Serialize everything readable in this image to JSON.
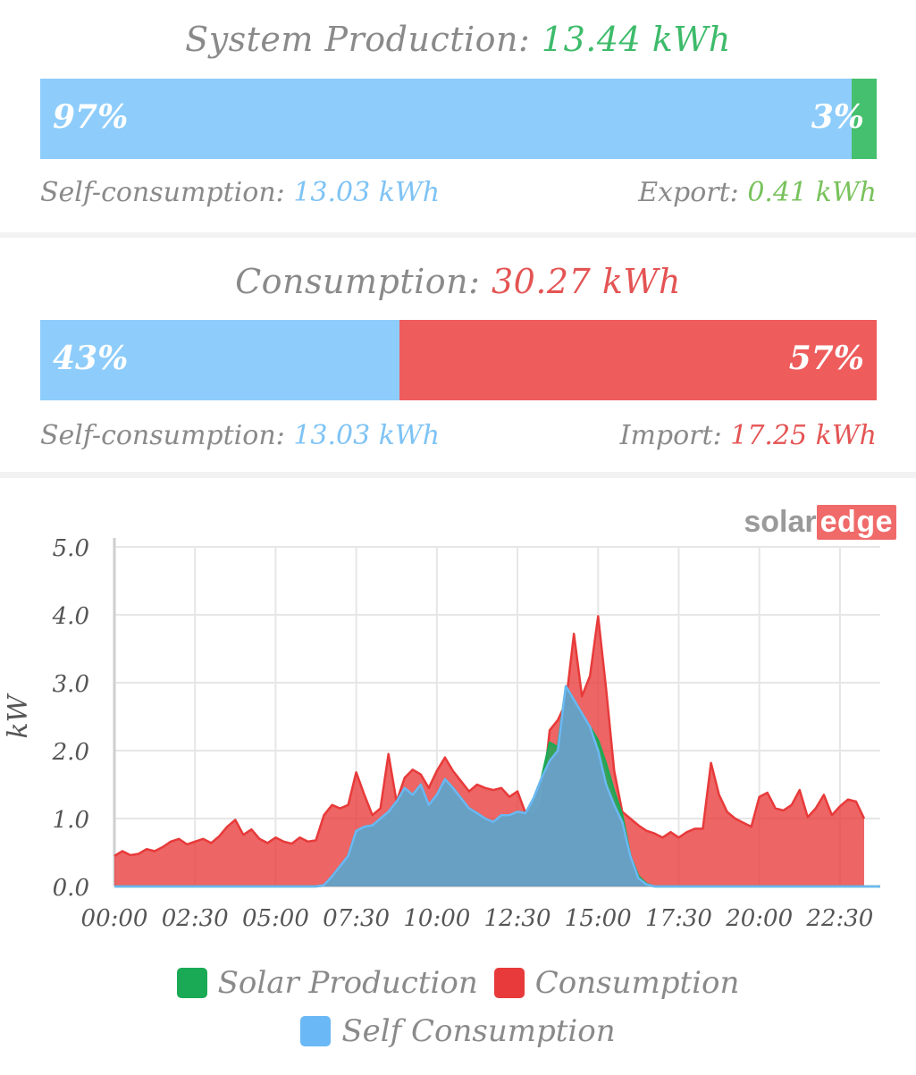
{
  "production": {
    "title": "System Production:",
    "total": "13.44 kWh",
    "self_pct": "97%",
    "export_pct": "3%",
    "self_fraction": 0.97,
    "self_label": "Self-consumption:",
    "self_value": "13.03 kWh",
    "export_label": "Export:",
    "export_value": "0.41 kWh"
  },
  "consumption": {
    "title": "Consumption:",
    "total": "30.27 kWh",
    "self_pct": "43%",
    "import_pct": "57%",
    "self_fraction": 0.43,
    "self_label": "Self-consumption:",
    "self_value": "13.03 kWh",
    "import_label": "Import:",
    "import_value": "17.25 kWh"
  },
  "brand": {
    "solar": "solar",
    "edge": "edge"
  },
  "colors": {
    "solar_production": "#1aaa55",
    "consumption": "#e83a3a",
    "self_consumption": "#6ab8f5"
  },
  "legend": [
    {
      "label": "Solar Production",
      "color": "#1aaa55",
      "icon": "legend-solar-swatch"
    },
    {
      "label": "Consumption",
      "color": "#e83a3a",
      "icon": "legend-consumption-swatch"
    },
    {
      "label": "Self Consumption",
      "color": "#6ab8f5",
      "icon": "legend-self-swatch"
    }
  ],
  "chart_data": {
    "type": "area",
    "ylabel": "kW",
    "ylim": [
      0,
      5
    ],
    "yticks": [
      "0.0",
      "1.0",
      "2.0",
      "3.0",
      "4.0",
      "5.0"
    ],
    "xticks": [
      "00:00",
      "02:30",
      "05:00",
      "07:30",
      "10:00",
      "12:30",
      "15:00",
      "17:30",
      "20:00",
      "22:30"
    ],
    "xlim_hours": [
      0,
      23.75
    ],
    "grid": true,
    "x_hours": [
      0,
      0.25,
      0.5,
      0.75,
      1,
      1.25,
      1.5,
      1.75,
      2,
      2.25,
      2.5,
      2.75,
      3,
      3.25,
      3.5,
      3.75,
      4,
      4.25,
      4.5,
      4.75,
      5,
      5.25,
      5.5,
      5.75,
      6,
      6.25,
      6.5,
      6.75,
      7,
      7.25,
      7.5,
      7.75,
      8,
      8.25,
      8.5,
      8.75,
      9,
      9.25,
      9.5,
      9.75,
      10,
      10.25,
      10.5,
      10.75,
      11,
      11.25,
      11.5,
      11.75,
      12,
      12.25,
      12.5,
      12.75,
      13,
      13.25,
      13.5,
      13.75,
      14,
      14.25,
      14.5,
      14.75,
      15,
      15.25,
      15.5,
      15.75,
      16,
      16.25,
      16.5,
      16.75,
      17,
      17.25,
      17.5,
      17.75,
      18,
      18.25,
      18.5,
      18.75,
      19,
      19.25,
      19.5,
      19.75,
      20,
      20.25,
      20.5,
      20.75,
      21,
      21.25,
      21.5,
      21.75,
      22,
      22.25,
      22.5,
      22.75,
      23,
      23.25,
      23.5,
      23.75
    ],
    "series": [
      {
        "name": "Consumption",
        "color": "#e83a3a",
        "values": [
          0.45,
          0.52,
          0.46,
          0.48,
          0.55,
          0.52,
          0.58,
          0.66,
          0.7,
          0.62,
          0.66,
          0.7,
          0.64,
          0.74,
          0.88,
          0.98,
          0.76,
          0.84,
          0.7,
          0.64,
          0.72,
          0.66,
          0.63,
          0.72,
          0.66,
          0.68,
          1.05,
          1.2,
          1.15,
          1.2,
          1.68,
          1.35,
          1.05,
          1.15,
          1.95,
          1.25,
          1.6,
          1.72,
          1.65,
          1.45,
          1.7,
          1.9,
          1.7,
          1.55,
          1.4,
          1.5,
          1.45,
          1.42,
          1.45,
          1.32,
          1.4,
          1.08,
          1.05,
          1.2,
          2.3,
          2.45,
          2.7,
          3.72,
          2.8,
          3.1,
          3.98,
          2.9,
          1.7,
          1.1,
          1.0,
          0.9,
          0.82,
          0.78,
          0.72,
          0.8,
          0.72,
          0.8,
          0.85,
          0.85,
          1.82,
          1.35,
          1.1,
          1.0,
          0.94,
          0.88,
          1.32,
          1.38,
          1.15,
          1.12,
          1.2,
          1.42,
          1.02,
          1.15,
          1.35,
          1.05,
          1.18,
          1.28,
          1.25,
          1.0
        ]
      },
      {
        "name": "Solar Production",
        "color": "#1aaa55",
        "values": [
          0,
          0,
          0,
          0,
          0,
          0,
          0,
          0,
          0,
          0,
          0,
          0,
          0,
          0,
          0,
          0,
          0,
          0,
          0,
          0,
          0,
          0,
          0,
          0,
          0,
          0,
          0.02,
          0.15,
          0.3,
          0.45,
          0.82,
          0.88,
          0.9,
          1.0,
          1.1,
          1.25,
          1.45,
          1.35,
          1.5,
          1.2,
          1.35,
          1.58,
          1.45,
          1.3,
          1.15,
          1.08,
          1.0,
          0.95,
          1.05,
          1.05,
          1.1,
          1.08,
          1.3,
          1.6,
          2.12,
          2.05,
          2.95,
          2.75,
          2.55,
          2.35,
          2.15,
          1.8,
          1.4,
          1.05,
          0.45,
          0.15,
          0.04,
          0,
          0,
          0,
          0,
          0,
          0,
          0,
          0,
          0,
          0,
          0,
          0,
          0,
          0,
          0,
          0,
          0,
          0,
          0,
          0,
          0,
          0,
          0,
          0,
          0,
          0,
          0,
          0,
          0
        ]
      },
      {
        "name": "Self Consumption",
        "color": "#6ab8f5",
        "values": [
          0,
          0,
          0,
          0,
          0,
          0,
          0,
          0,
          0,
          0,
          0,
          0,
          0,
          0,
          0,
          0,
          0,
          0,
          0,
          0,
          0,
          0,
          0,
          0,
          0,
          0,
          0.02,
          0.15,
          0.3,
          0.45,
          0.82,
          0.88,
          0.9,
          1.0,
          1.1,
          1.25,
          1.45,
          1.35,
          1.5,
          1.2,
          1.35,
          1.58,
          1.45,
          1.3,
          1.15,
          1.08,
          1.0,
          0.95,
          1.05,
          1.05,
          1.1,
          1.08,
          1.3,
          1.6,
          1.85,
          2.0,
          2.95,
          2.75,
          2.55,
          2.35,
          2.0,
          1.5,
          1.2,
          0.95,
          0.45,
          0.12,
          0.03,
          0,
          0,
          0,
          0,
          0,
          0,
          0,
          0,
          0,
          0,
          0,
          0,
          0,
          0,
          0,
          0,
          0,
          0,
          0,
          0,
          0,
          0,
          0,
          0,
          0,
          0,
          0,
          0,
          0
        ]
      }
    ]
  }
}
